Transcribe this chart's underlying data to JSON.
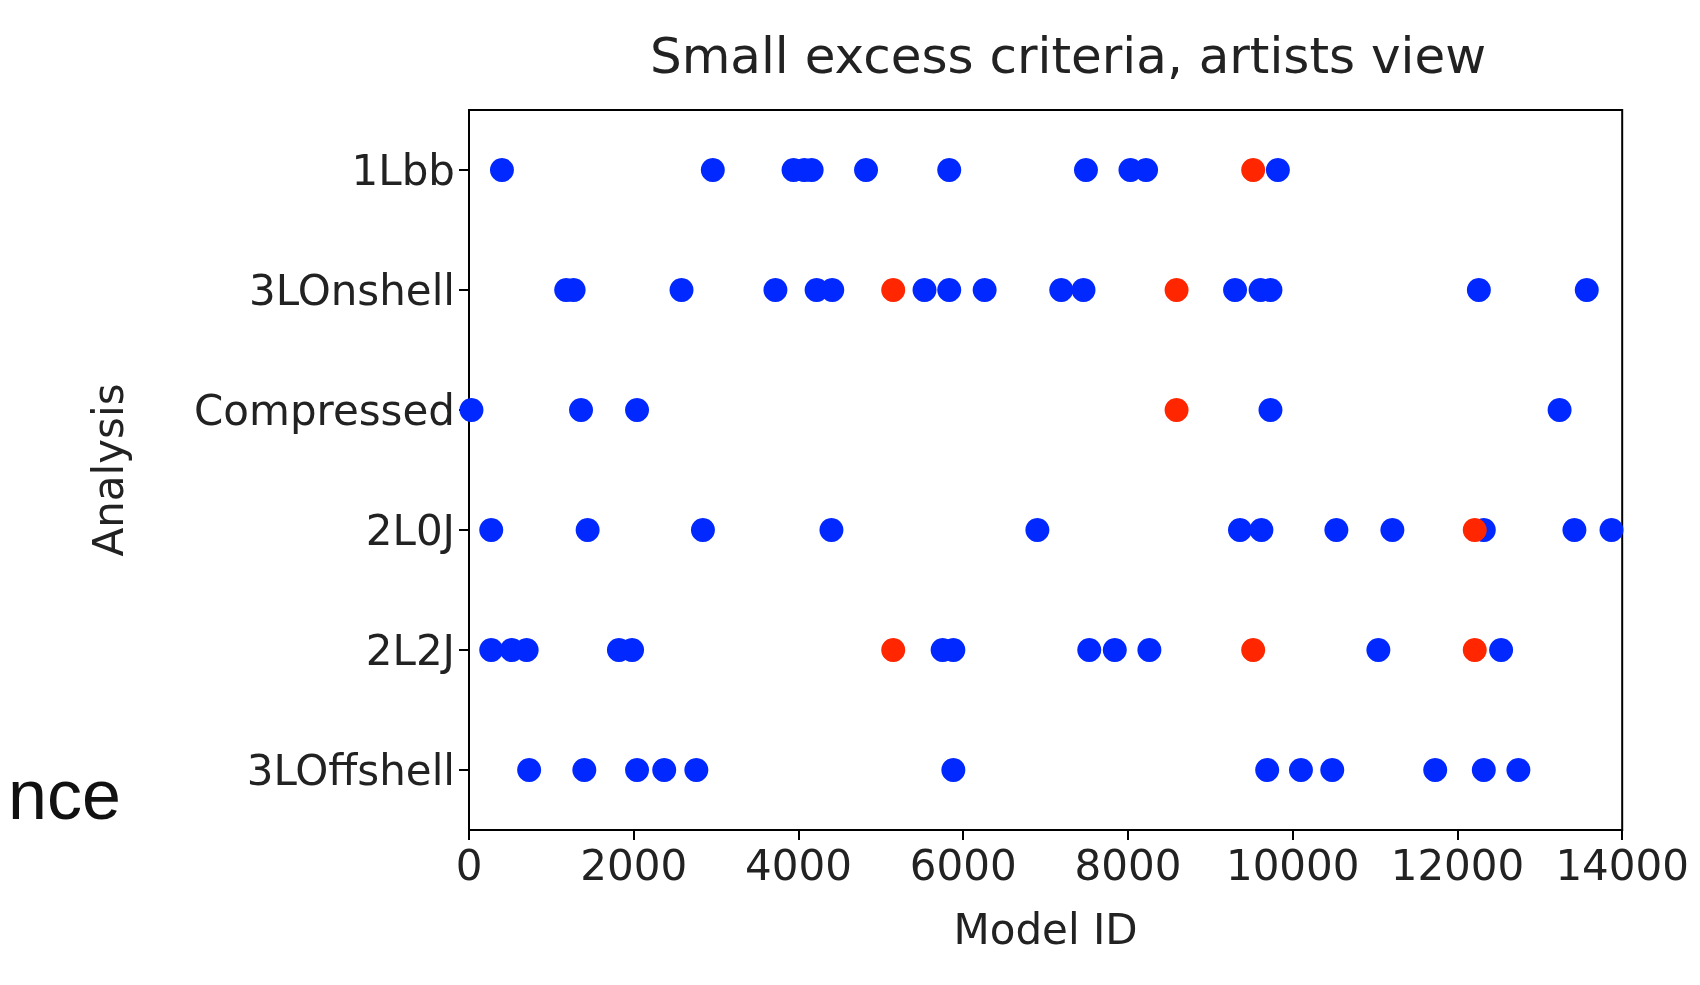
{
  "chart_data": {
    "type": "scatter",
    "title": "Small excess criteria, artists view",
    "xlabel": "Model ID",
    "ylabel": "Analysis",
    "orientation": "horizontal",
    "categories": [
      "1Lbb",
      "3LOnshell",
      "Compressed",
      "2L0J",
      "2L2J",
      "3LOffshell"
    ],
    "series": [
      {
        "color": "#0028ff",
        "x": [
          "1Lbb",
          "1Lbb",
          "1Lbb",
          "1Lbb",
          "1Lbb",
          "1Lbb",
          "1Lbb",
          "1Lbb",
          "1Lbb",
          "1Lbb",
          "1Lbb",
          "3LOnshell",
          "3LOnshell",
          "3LOnshell",
          "3LOnshell",
          "3LOnshell",
          "3LOnshell",
          "3LOnshell",
          "3LOnshell",
          "3LOnshell",
          "3LOnshell",
          "3LOnshell",
          "3LOnshell",
          "3LOnshell",
          "3LOnshell",
          "3LOnshell",
          "3LOnshell",
          "Compressed",
          "Compressed",
          "Compressed",
          "Compressed",
          "Compressed",
          "2L0J",
          "2L0J",
          "2L0J",
          "2L0J",
          "2L0J",
          "2L0J",
          "2L0J",
          "2L0J",
          "2L0J",
          "2L0J",
          "2L0J",
          "2L0J",
          "2L2J",
          "2L2J",
          "2L2J",
          "2L2J",
          "2L2J",
          "2L2J",
          "2L2J",
          "2L2J",
          "2L2J",
          "2L2J",
          "2L2J",
          "2L2J",
          "3LOffshell",
          "3LOffshell",
          "3LOffshell",
          "3LOffshell",
          "3LOffshell",
          "3LOffshell",
          "3LOffshell",
          "3LOffshell",
          "3LOffshell",
          "3LOffshell",
          "3LOffshell",
          "3LOffshell"
        ],
        "values": [
          400,
          2960,
          3940,
          4070,
          4160,
          4820,
          5830,
          7490,
          8030,
          8220,
          9820,
          1180,
          1270,
          2580,
          3720,
          4220,
          4410,
          5530,
          5830,
          6260,
          7190,
          7460,
          9300,
          9610,
          9730,
          12260,
          13570,
          30,
          1360,
          2040,
          9730,
          13240,
          270,
          1440,
          2840,
          4400,
          6900,
          9360,
          9620,
          10530,
          11210,
          12320,
          13420,
          13870,
          270,
          520,
          700,
          1820,
          1980,
          5750,
          5880,
          7530,
          7840,
          8260,
          11040,
          12530,
          730,
          1400,
          2040,
          2370,
          2760,
          5880,
          9690,
          10100,
          10480,
          11730,
          12320,
          12740
        ]
      },
      {
        "color": "#ff2600",
        "x": [
          "1Lbb",
          "3LOnshell",
          "3LOnshell",
          "Compressed",
          "2L0J",
          "2L2J",
          "2L2J",
          "2L2J"
        ],
        "values": [
          9520,
          5150,
          8590,
          8590,
          12210,
          5150,
          9520,
          12210
        ]
      }
    ],
    "xlim": [
      0,
      14000
    ],
    "xticks": [
      0,
      2000,
      4000,
      6000,
      8000,
      10000,
      12000,
      14000
    ],
    "marker": "circle",
    "annotations": [
      "nce"
    ]
  }
}
